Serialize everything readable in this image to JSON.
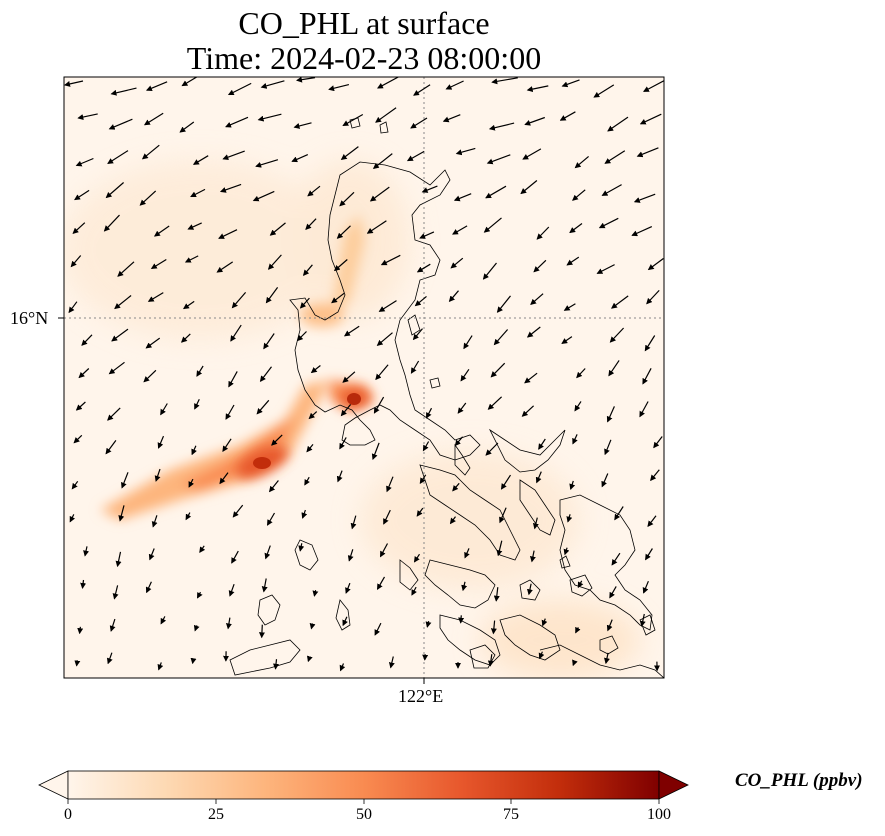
{
  "title": {
    "line1": "CO_PHL at surface",
    "line2": "Time: 2024-02-23 08:00:00"
  },
  "map": {
    "lat_ticks": [
      "16°N"
    ],
    "lon_ticks": [
      "122°E"
    ],
    "colormap": [
      "#fff5eb",
      "#fdd9b3",
      "#fdb57d",
      "#f98b51",
      "#e7572c",
      "#c22d0b",
      "#7f0000"
    ]
  },
  "colorbar": {
    "ticks": [
      "0",
      "25",
      "50",
      "75",
      "100"
    ],
    "label": "CO_PHL (ppbv)"
  }
}
